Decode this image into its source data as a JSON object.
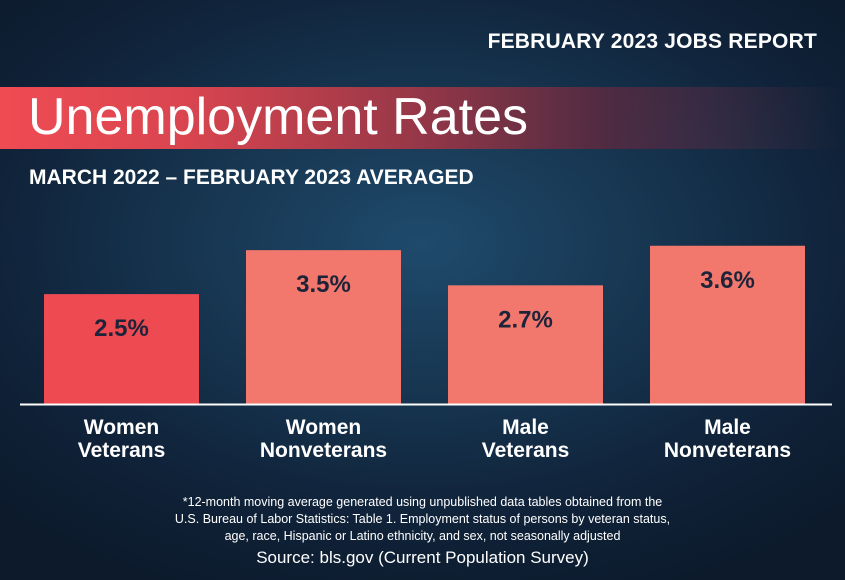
{
  "header": {
    "report_label": "FEBRUARY 2023 JOBS REPORT",
    "title": "Unemployment Rates",
    "subtitle": "MARCH 2022 – FEBRUARY 2023 AVERAGED"
  },
  "chart_data": {
    "type": "bar",
    "categories": [
      [
        "Women",
        "Veterans"
      ],
      [
        "Women",
        "Nonveterans"
      ],
      [
        "Male",
        "Veterans"
      ],
      [
        "Male",
        "Nonveterans"
      ]
    ],
    "values": [
      2.5,
      3.5,
      2.7,
      3.6
    ],
    "value_labels": [
      "2.5%",
      "3.5%",
      "2.7%",
      "3.6%"
    ],
    "colors": [
      "#ee4a52",
      "#f2786d",
      "#f2786d",
      "#f2786d"
    ],
    "label_color": "#1d2338",
    "axis_color": "#ffffff",
    "xlabel": "",
    "ylabel": "",
    "ylim": [
      0,
      4.55
    ],
    "grid": false,
    "legend": "none"
  },
  "footnote": {
    "lines": [
      "*12-month moving average generated using unpublished data tables obtained from the",
      "U.S. Bureau of Labor Statistics: Table 1. Employment status of persons by veteran status,",
      "age, race, Hispanic or Latino ethnicity, and sex, not seasonally adjusted"
    ],
    "source": "Source: bls.gov (Current Population Survey)"
  }
}
